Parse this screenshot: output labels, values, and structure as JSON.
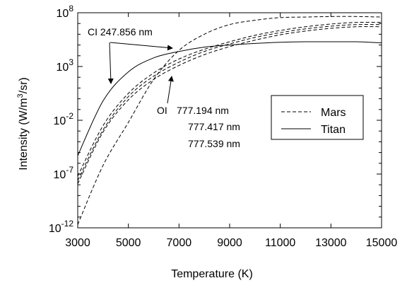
{
  "chart_data": {
    "type": "line",
    "xlabel": "Temperature (K)",
    "ylabel": "Intensity (W/m3/sr)",
    "ylabel_parts": {
      "main": "Intensity (W/m",
      "sup": "3",
      "tail": "/sr)"
    },
    "xlim": [
      3000,
      15000
    ],
    "ylim_log10": [
      -12,
      8
    ],
    "y_scale": "log",
    "grid": false,
    "legend_position": "right",
    "x_ticks": [
      3000,
      5000,
      7000,
      9000,
      11000,
      13000,
      15000
    ],
    "x_tick_labels": [
      "3000",
      "5000",
      "7000",
      "9000",
      "11000",
      "13000",
      "15000"
    ],
    "y_ticks_log10": [
      -12,
      -7,
      -2,
      3,
      8
    ],
    "y_tick_labels": [
      {
        "base": "10",
        "exp": "-12"
      },
      {
        "base": "10",
        "exp": "-7"
      },
      {
        "base": "10",
        "exp": "-2"
      },
      {
        "base": "10",
        "exp": "3"
      },
      {
        "base": "10",
        "exp": "8"
      }
    ],
    "legend": [
      {
        "label": "Mars",
        "style": "dashed"
      },
      {
        "label": "Titan",
        "style": "solid"
      }
    ],
    "annotations": {
      "ci": "CI 247.856 nm",
      "oi_prefix": "OI",
      "oi_lines": [
        "777.194 nm",
        "777.417 nm",
        "777.539 nm"
      ]
    },
    "series": [
      {
        "name": "Mars",
        "style": "dashed",
        "x": [
          3000,
          4000,
          5000,
          6000,
          7000,
          8000,
          9000,
          10000,
          11000,
          12000,
          13000,
          14000,
          15000
        ],
        "log10_y": [
          -11.7,
          -6.2,
          -2.2,
          1.8,
          4.5,
          6.0,
          6.9,
          7.3,
          7.55,
          7.6,
          7.65,
          7.65,
          7.6
        ]
      },
      {
        "name": "Mars",
        "style": "dashed",
        "x": [
          3000,
          4000,
          5000,
          6000,
          7000,
          8000,
          9000,
          10000,
          11000,
          12000,
          13000,
          14000,
          15000
        ],
        "log10_y": [
          -7.2,
          -2.5,
          0.5,
          2.4,
          3.7,
          4.6,
          5.3,
          5.9,
          6.35,
          6.7,
          6.95,
          7.1,
          7.1
        ]
      },
      {
        "name": "Mars",
        "style": "dashed",
        "x": [
          3000,
          4000,
          5000,
          6000,
          7000,
          8000,
          9000,
          10000,
          11000,
          12000,
          13000,
          14000,
          15000
        ],
        "log10_y": [
          -7.6,
          -2.9,
          0.2,
          2.1,
          3.4,
          4.4,
          5.1,
          5.7,
          6.15,
          6.5,
          6.75,
          6.9,
          6.9
        ]
      },
      {
        "name": "Mars",
        "style": "dashed",
        "x": [
          3000,
          4000,
          5000,
          6000,
          7000,
          8000,
          9000,
          10000,
          11000,
          12000,
          13000,
          14000,
          15000
        ],
        "log10_y": [
          -7.9,
          -3.1,
          -0.1,
          1.8,
          3.1,
          4.1,
          4.85,
          5.45,
          5.95,
          6.3,
          6.55,
          6.7,
          6.7
        ]
      },
      {
        "name": "Titan",
        "style": "solid",
        "x": [
          3000,
          4000,
          5000,
          6000,
          7000,
          8000,
          9000,
          10000,
          11000,
          12000,
          13000,
          14000,
          15000
        ],
        "log10_y": [
          -5.3,
          -0.2,
          2.5,
          3.8,
          4.4,
          4.8,
          5.0,
          5.15,
          5.25,
          5.3,
          5.3,
          5.3,
          5.2
        ]
      }
    ]
  }
}
